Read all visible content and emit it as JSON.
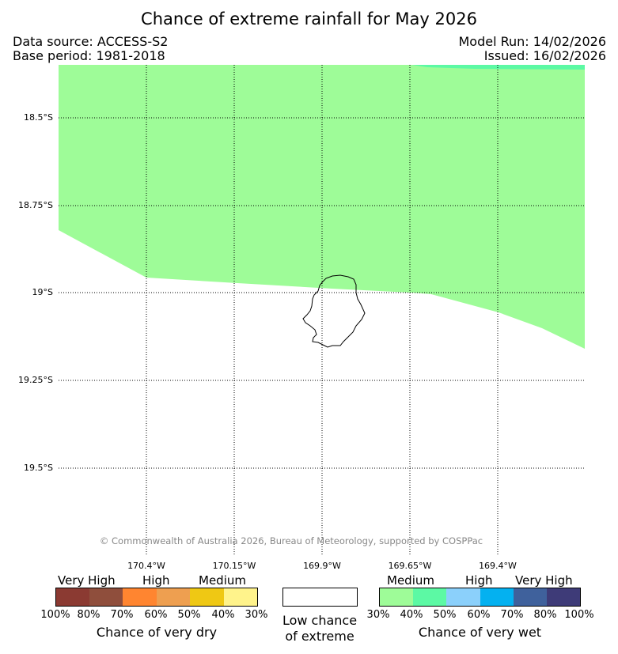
{
  "title": "Chance of extreme rainfall for May 2026",
  "meta": {
    "data_source": "Data source: ACCESS-S2",
    "base_period": "Base period: 1981-2018",
    "model_run": "Model Run: 14/02/2026",
    "issued": "Issued: 16/02/2026"
  },
  "map": {
    "lat_labels": [
      "18.5°S",
      "18.75°S",
      "19°S",
      "19.25°S",
      "19.5°S"
    ],
    "lon_labels": [
      "170.4°W",
      "170.15°W",
      "169.9°W",
      "169.65°W",
      "169.4°W"
    ],
    "copyright": "© Commonwealth of Australia 2026, Bureau of Meteorology, supported by COSPPac",
    "regions": [
      {
        "name": "medium-wet-area",
        "category": "30%-40% chance of very wet",
        "color": "#9efc98"
      },
      {
        "name": "medium-wet-sliver",
        "category": "40%-50% chance of very wet",
        "color": "#5cf9a4"
      }
    ]
  },
  "legend": {
    "dry": {
      "categories": [
        "Very High",
        "High",
        "Medium"
      ],
      "colors": [
        "#8b3a32",
        "#8f4e3c",
        "#ff8530",
        "#ee9f50",
        "#efc814",
        "#fff38b"
      ],
      "ticks": [
        "100%",
        "80%",
        "70%",
        "60%",
        "50%",
        "40%",
        "30%"
      ],
      "title": "Chance of very dry"
    },
    "low": {
      "color": "#ffffff",
      "line1": "Low chance",
      "line2": "of extreme"
    },
    "wet": {
      "categories": [
        "Medium",
        "High",
        "Very High"
      ],
      "colors": [
        "#9efc98",
        "#5cf9a4",
        "#8bd0fb",
        "#04b1f0",
        "#3f619c",
        "#3e3b78"
      ],
      "ticks": [
        "30%",
        "40%",
        "50%",
        "60%",
        "70%",
        "80%",
        "100%"
      ],
      "title": "Chance of very wet"
    }
  }
}
